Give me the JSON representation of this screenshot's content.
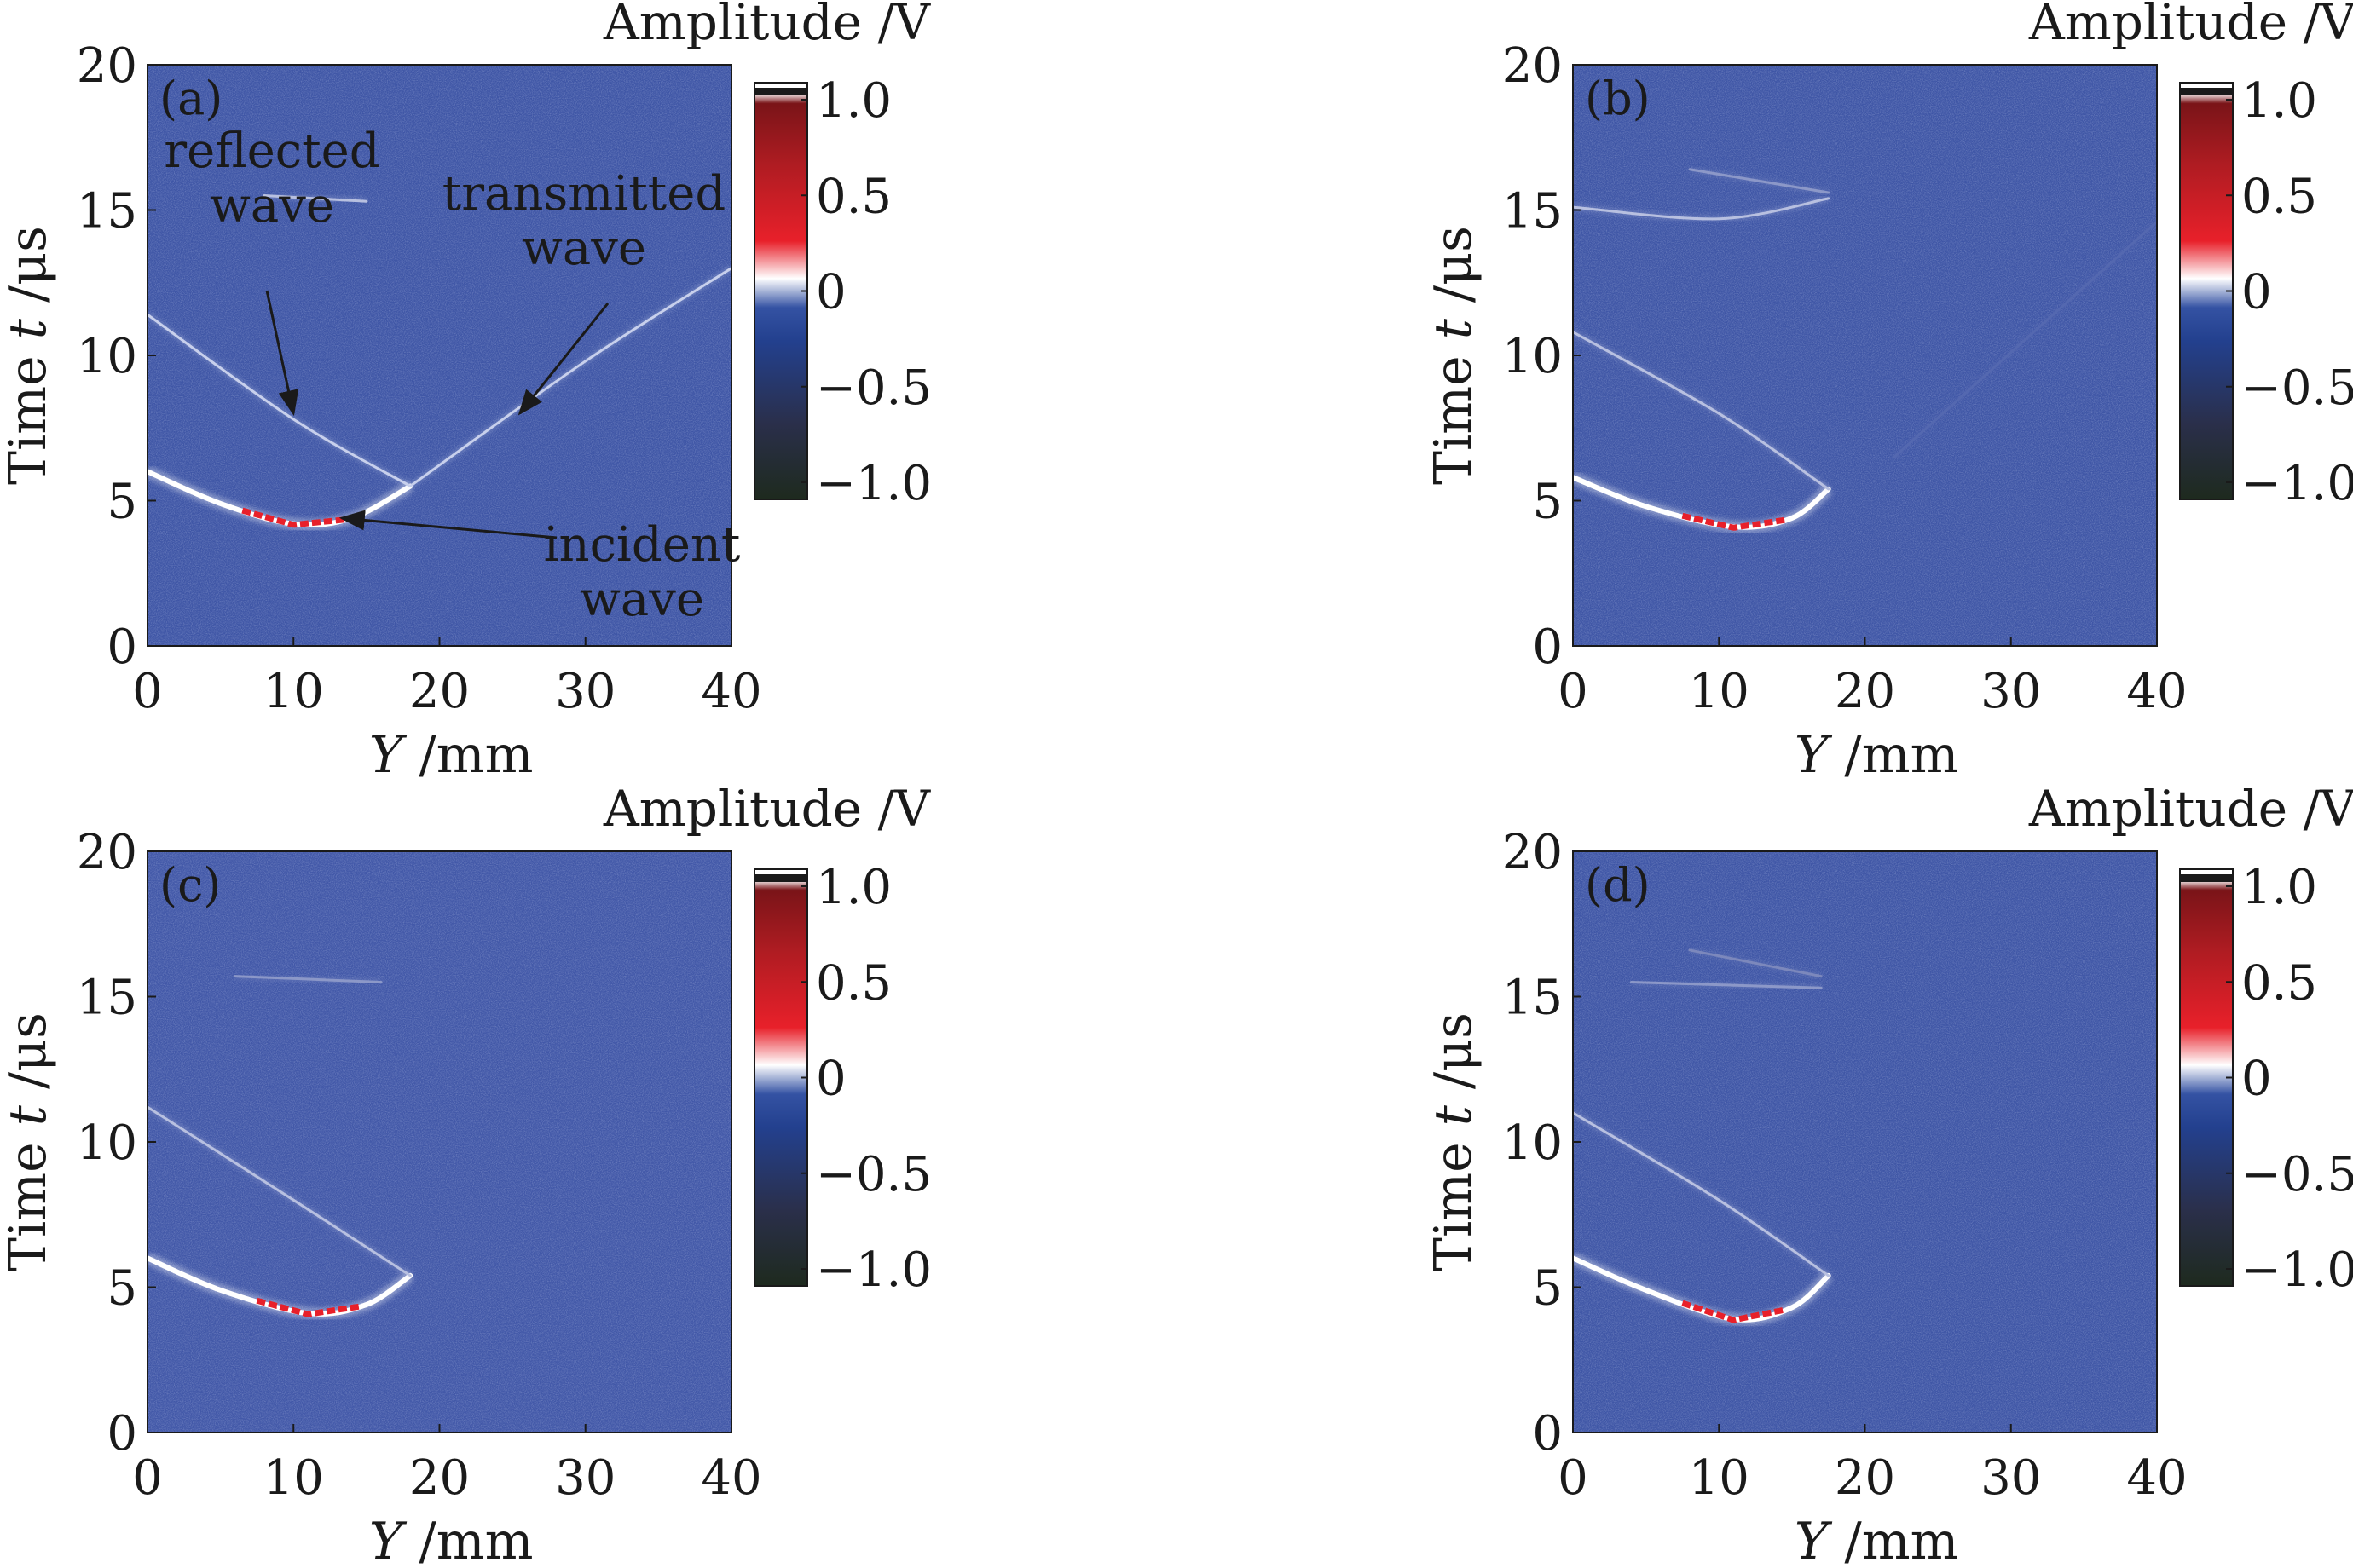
{
  "figure": {
    "colormap_stops": [
      "#1e2a1e",
      "#2a2f4a",
      "#23408e",
      "#3452a3",
      "#ffffff",
      "#e8202a",
      "#b01c22",
      "#7a1418",
      "#ffffff"
    ]
  },
  "chart_data": [
    {
      "type": "heatmap",
      "panel_label": "(a)",
      "xlabel_var": "Y",
      "xlabel_unit": " /mm",
      "ylabel_text": "Time ",
      "ylabel_var": "t",
      "ylabel_unit": " /μs",
      "xlim": [
        0,
        40
      ],
      "ylim": [
        0,
        20
      ],
      "xticks": [
        "0",
        "10",
        "20",
        "30",
        "40"
      ],
      "yticks": [
        "0",
        "5",
        "10",
        "15",
        "20"
      ],
      "colorbar": {
        "title": "Amplitude /V",
        "range": [
          -1.0,
          1.0
        ],
        "ticks": [
          "1.0",
          "0.5",
          "0",
          "−0.5",
          "−1.0"
        ]
      },
      "background": "#3f56a6",
      "features": [
        {
          "name": "incident",
          "points": [
            [
              0,
              6.0
            ],
            [
              5,
              4.9
            ],
            [
              10,
              4.2
            ],
            [
              14,
              4.4
            ],
            [
              18,
              5.5
            ]
          ],
          "color": "#ffffff",
          "peak_color": "#e8202a"
        },
        {
          "name": "reflected",
          "points": [
            [
              0,
              11.4
            ],
            [
              10,
              7.8
            ],
            [
              18,
              5.5
            ]
          ],
          "color": "#c8d0ec"
        },
        {
          "name": "transmitted",
          "points": [
            [
              18,
              5.5
            ],
            [
              30,
              9.8
            ],
            [
              40,
              13.0
            ]
          ],
          "color": "#c8d0ec"
        },
        {
          "name": "upper",
          "points": [
            [
              8,
              15.5
            ],
            [
              15,
              15.3
            ]
          ],
          "color": "#b8c0e0"
        }
      ],
      "annotations": [
        {
          "lines": [
            "reflected",
            "wave"
          ],
          "arrow_to": [
            10,
            8.0
          ]
        },
        {
          "lines": [
            "transmitted",
            "wave"
          ],
          "arrow_to": [
            25.5,
            8.0
          ]
        },
        {
          "lines": [
            "incident",
            "wave"
          ],
          "arrow_to": [
            13.3,
            4.4
          ]
        }
      ]
    },
    {
      "type": "heatmap",
      "panel_label": "(b)",
      "xlabel_var": "Y",
      "xlabel_unit": " /mm",
      "ylabel_text": "Time ",
      "ylabel_var": "t",
      "ylabel_unit": " /μs",
      "xlim": [
        0,
        40
      ],
      "ylim": [
        0,
        20
      ],
      "xticks": [
        "0",
        "10",
        "20",
        "30",
        "40"
      ],
      "yticks": [
        "0",
        "5",
        "10",
        "15",
        "20"
      ],
      "colorbar": {
        "title": "Amplitude /V",
        "range": [
          -1.0,
          1.0
        ],
        "ticks": [
          "1.0",
          "0.5",
          "0",
          "−0.5",
          "−1.0"
        ]
      },
      "background": "#3f56a6",
      "features": [
        {
          "name": "incident",
          "points": [
            [
              0,
              5.8
            ],
            [
              5,
              4.8
            ],
            [
              11,
              4.1
            ],
            [
              15,
              4.4
            ],
            [
              17.5,
              5.4
            ]
          ],
          "color": "#ffffff",
          "peak_color": "#e8202a"
        },
        {
          "name": "reflected",
          "points": [
            [
              0,
              10.8
            ],
            [
              10,
              8.0
            ],
            [
              17.5,
              5.4
            ]
          ],
          "color": "#b8c0e0"
        },
        {
          "name": "transmitted",
          "points": [
            [
              22,
              6.5
            ],
            [
              40,
              14.6
            ]
          ],
          "color": "#5468b0"
        },
        {
          "name": "upper",
          "points": [
            [
              0,
              15.1
            ],
            [
              10,
              14.7
            ],
            [
              17.5,
              15.4
            ]
          ],
          "color": "#b8c0e0"
        },
        {
          "name": "upper2",
          "points": [
            [
              8,
              16.4
            ],
            [
              17.5,
              15.6
            ]
          ],
          "color": "#8c98c8"
        }
      ],
      "annotations": []
    },
    {
      "type": "heatmap",
      "panel_label": "(c)",
      "xlabel_var": "Y",
      "xlabel_unit": " /mm",
      "ylabel_text": "Time ",
      "ylabel_var": "t",
      "ylabel_unit": " /μs",
      "xlim": [
        0,
        40
      ],
      "ylim": [
        0,
        20
      ],
      "xticks": [
        "0",
        "10",
        "20",
        "30",
        "40"
      ],
      "yticks": [
        "0",
        "5",
        "10",
        "15",
        "20"
      ],
      "colorbar": {
        "title": "Amplitude /V",
        "range": [
          -1.0,
          1.0
        ],
        "ticks": [
          "1.0",
          "0.5",
          "0",
          "−0.5",
          "−1.0"
        ]
      },
      "background": "#4258a8",
      "features": [
        {
          "name": "incident",
          "points": [
            [
              0,
              6.0
            ],
            [
              5,
              4.9
            ],
            [
              11,
              4.1
            ],
            [
              15,
              4.4
            ],
            [
              18,
              5.4
            ]
          ],
          "color": "#ffffff",
          "peak_color": "#e8202a"
        },
        {
          "name": "reflected",
          "points": [
            [
              0,
              11.2
            ],
            [
              10,
              8.0
            ],
            [
              18,
              5.4
            ]
          ],
          "color": "#b8c0e0"
        },
        {
          "name": "upper",
          "points": [
            [
              6,
              15.7
            ],
            [
              16,
              15.5
            ]
          ],
          "color": "#8c98c8"
        }
      ],
      "annotations": []
    },
    {
      "type": "heatmap",
      "panel_label": "(d)",
      "xlabel_var": "Y",
      "xlabel_unit": " /mm",
      "ylabel_text": "Time ",
      "ylabel_var": "t",
      "ylabel_unit": " /μs",
      "xlim": [
        0,
        40
      ],
      "ylim": [
        0,
        20
      ],
      "xticks": [
        "0",
        "10",
        "20",
        "30",
        "40"
      ],
      "yticks": [
        "0",
        "5",
        "10",
        "15",
        "20"
      ],
      "colorbar": {
        "title": "Amplitude /V",
        "range": [
          -1.0,
          1.0
        ],
        "ticks": [
          "1.0",
          "0.5",
          "0",
          "−0.5",
          "−1.0"
        ]
      },
      "background": "#3f56a6",
      "features": [
        {
          "name": "incident",
          "points": [
            [
              0,
              6.0
            ],
            [
              5,
              4.9
            ],
            [
              11,
              3.9
            ],
            [
              15,
              4.3
            ],
            [
              17.5,
              5.4
            ]
          ],
          "color": "#ffffff",
          "peak_color": "#e8202a"
        },
        {
          "name": "reflected",
          "points": [
            [
              0,
              11.0
            ],
            [
              10,
              8.0
            ],
            [
              17.5,
              5.4
            ]
          ],
          "color": "#b8c0e0"
        },
        {
          "name": "upper",
          "points": [
            [
              4,
              15.5
            ],
            [
              17,
              15.3
            ]
          ],
          "color": "#8c98c8"
        },
        {
          "name": "upper2",
          "points": [
            [
              8,
              16.6
            ],
            [
              17,
              15.7
            ]
          ],
          "color": "#7c88bc"
        }
      ],
      "annotations": []
    }
  ]
}
